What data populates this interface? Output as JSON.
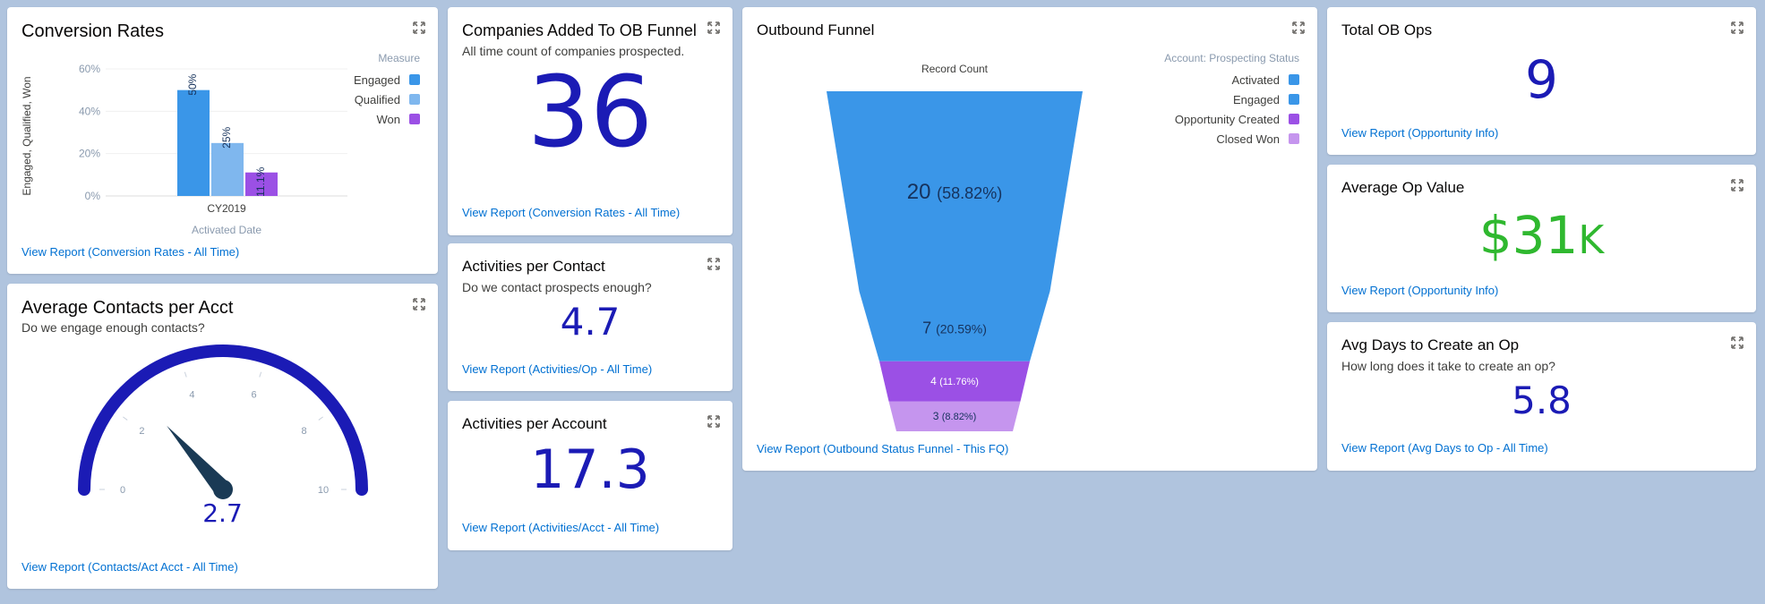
{
  "colors": {
    "engaged": "#3a96e8",
    "qualified": "#7fb7ee",
    "won": "#9b50e5",
    "activated": "#3a96e8",
    "opportunity_created": "#9b50e5",
    "closed_won": "#c595ee",
    "metric_blue": "#1b1bb5",
    "metric_green": "#2fb82f",
    "link": "#0070d2"
  },
  "conversion": {
    "title": "Conversion Rates",
    "link": "View Report (Conversion Rates - All Time)",
    "legend_title": "Measure",
    "y_ticks": [
      "0%",
      "20%",
      "40%",
      "60%"
    ],
    "y_label": "Engaged, Qualified, Won",
    "x_label": "Activated Date"
  },
  "contacts_per_acct": {
    "title": "Average Contacts per Acct",
    "subtitle": "Do we engage enough contacts?",
    "value": "2.7",
    "link": "View Report (Contacts/Act Acct - All Time)",
    "ticks": [
      "0",
      "2",
      "4",
      "6",
      "8",
      "10"
    ]
  },
  "companies_added": {
    "title": "Companies Added To OB Funnel",
    "subtitle": "All time count of companies prospected.",
    "value": "36",
    "link": "View Report (Conversion Rates - All Time)"
  },
  "activities_contact": {
    "title": "Activities per Contact",
    "subtitle": "Do we contact prospects enough?",
    "value": "4.7",
    "link": "View Report (Activities/Op - All Time)"
  },
  "activities_account": {
    "title": "Activities per Account",
    "value": "17.3",
    "link": "View Report (Activities/Acct - All Time)"
  },
  "funnel": {
    "title": "Outbound Funnel",
    "axis_label": "Record Count",
    "legend_title": "Account: Prospecting Status",
    "link": "View Report (Outbound Status Funnel - This FQ)"
  },
  "total_ops": {
    "title": "Total OB Ops",
    "value": "9",
    "link": "View Report (Opportunity Info)"
  },
  "avg_op_value": {
    "title": "Average Op Value",
    "value": "$31",
    "suffix": "K",
    "link": "View Report (Opportunity Info)"
  },
  "avg_days": {
    "title": "Avg Days to Create an Op",
    "subtitle": "How long does it take to create an op?",
    "value": "5.8",
    "link": "View Report (Avg Days to Op - All Time)"
  },
  "chart_data": [
    {
      "type": "bar",
      "title": "Conversion Rates",
      "categories": [
        "CY2019"
      ],
      "series": [
        {
          "name": "Engaged",
          "values": [
            50
          ],
          "label": "50%"
        },
        {
          "name": "Qualified",
          "values": [
            25
          ],
          "label": "25%"
        },
        {
          "name": "Won",
          "values": [
            11.1
          ],
          "label": "11.1%"
        }
      ],
      "xlabel": "Activated Date",
      "ylabel": "Engaged, Qualified, Won",
      "ylim": [
        0,
        60
      ],
      "legend": "right"
    },
    {
      "type": "funnel",
      "title": "Outbound Funnel",
      "categories": [
        "Activated",
        "Engaged",
        "Opportunity Created",
        "Closed Won"
      ],
      "values": [
        20,
        7,
        4,
        3
      ],
      "labels": [
        "20",
        "7",
        "4",
        "3"
      ],
      "percents": [
        "(58.82%)",
        "(20.59%)",
        "(11.76%)",
        "(8.82%)"
      ],
      "legend": "top-right"
    },
    {
      "type": "gauge",
      "title": "Average Contacts per Acct",
      "value": 2.7,
      "range": [
        0,
        10
      ]
    }
  ]
}
